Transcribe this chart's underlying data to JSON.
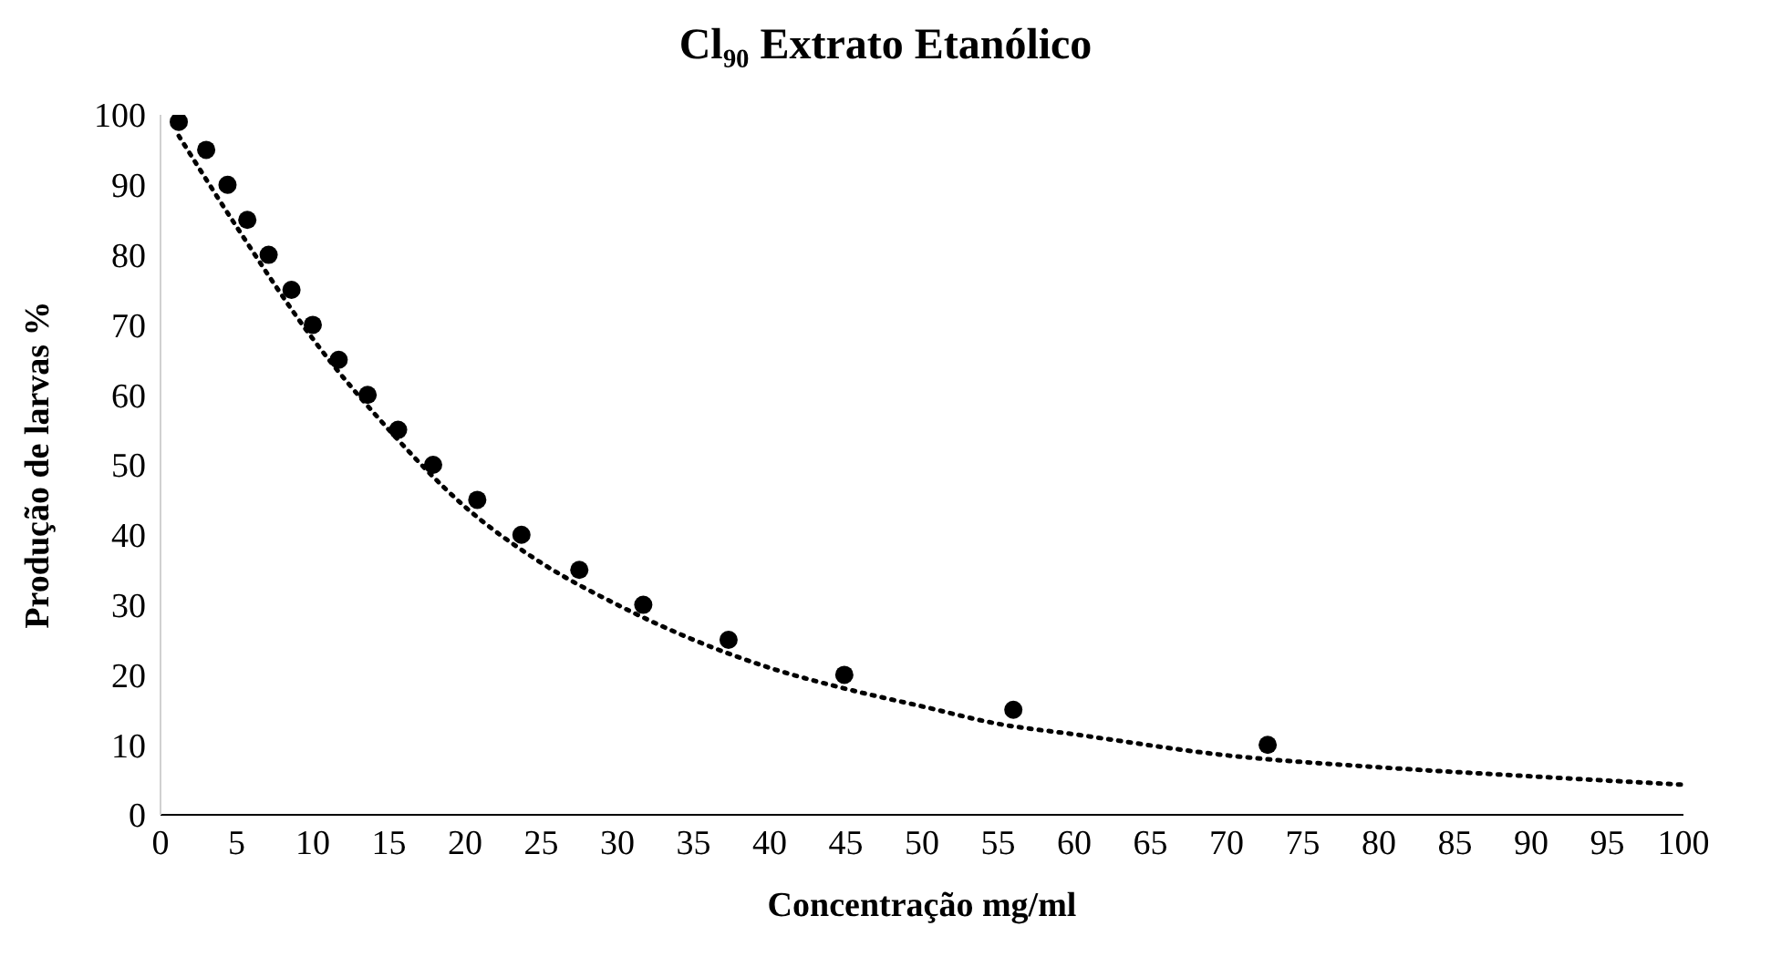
{
  "chart_data": {
    "type": "scatter",
    "title": "Cl₉₀ Extrato Etanólico",
    "xlabel": "Concentração mg/ml",
    "ylabel": "Produção de larvas %",
    "xlim": [
      0,
      100
    ],
    "xticks": [
      0,
      5,
      10,
      15,
      20,
      25,
      30,
      35,
      40,
      45,
      50,
      55,
      60,
      65,
      70,
      75,
      80,
      85,
      90,
      95,
      100
    ],
    "ylim": [
      0,
      100
    ],
    "yticks": [
      0,
      10,
      20,
      30,
      40,
      50,
      60,
      70,
      80,
      90,
      100
    ],
    "grid": false,
    "legend": false,
    "marker": "circle",
    "series": [
      {
        "color": "#000000",
        "x": [
          1.2,
          3.0,
          4.4,
          5.7,
          7.1,
          8.6,
          10.0,
          11.7,
          13.6,
          15.6,
          17.9,
          20.8,
          23.7,
          27.5,
          31.7,
          37.3,
          44.9,
          56.0,
          72.7
        ],
        "values": [
          99,
          95,
          90,
          85,
          80,
          75,
          70,
          65,
          60,
          55,
          50,
          45,
          40,
          35,
          30,
          25,
          20,
          15,
          10
        ]
      },
      {
        "type": "line",
        "color": "#000000",
        "line_style": "dotted",
        "marker": "none",
        "x": [
          1.2,
          5,
          10,
          15,
          20,
          25,
          30,
          35,
          40,
          45,
          50,
          55,
          60,
          70,
          80,
          90,
          100
        ],
        "values": [
          97,
          84,
          68,
          55,
          44,
          36,
          30,
          25,
          21,
          18,
          15.5,
          13,
          11.5,
          8.5,
          6.8,
          5.5,
          4.3
        ]
      }
    ]
  }
}
